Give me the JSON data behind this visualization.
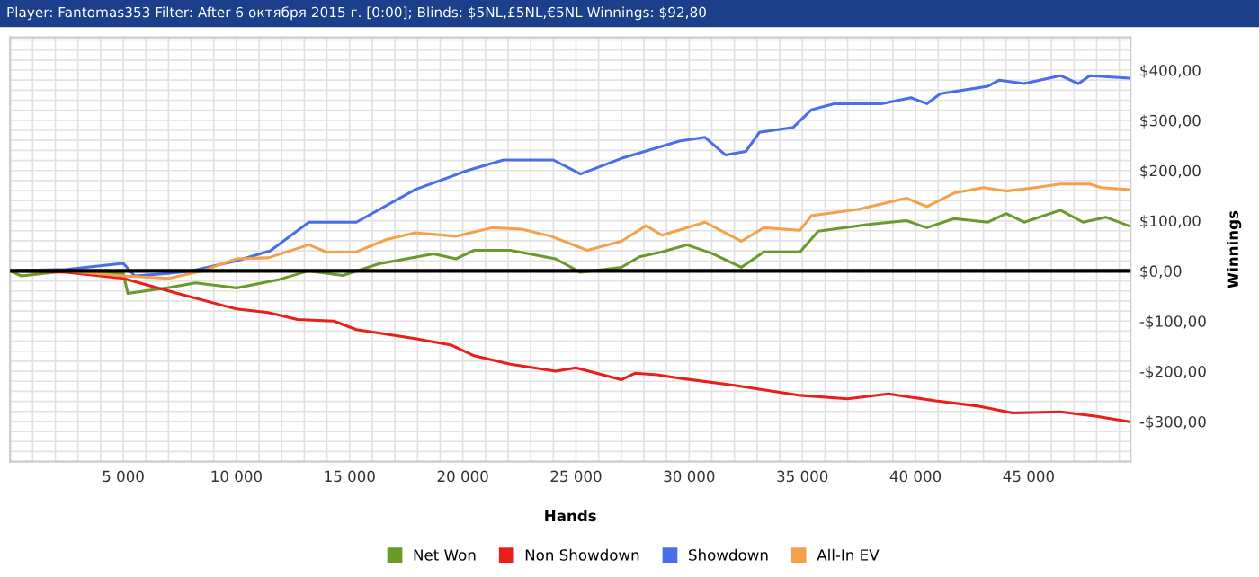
{
  "chart_data": {
    "type": "line",
    "title": "Player: Fantomas353 Filter: After 6 октября 2015 г. [0:00]; Blinds: $5NL,£5NL,€5NL Winnings: $92,80",
    "xlabel": "Hands",
    "ylabel": "Winnings",
    "xlim": [
      0,
      49500
    ],
    "ylim": [
      -380,
      465
    ],
    "xticks": [
      {
        "value": 5000,
        "label": "5 000"
      },
      {
        "value": 10000,
        "label": "10 000"
      },
      {
        "value": 15000,
        "label": "15 000"
      },
      {
        "value": 20000,
        "label": "20 000"
      },
      {
        "value": 25000,
        "label": "25 000"
      },
      {
        "value": 30000,
        "label": "30 000"
      },
      {
        "value": 35000,
        "label": "35 000"
      },
      {
        "value": 40000,
        "label": "40 000"
      },
      {
        "value": 45000,
        "label": "45 000"
      }
    ],
    "yticks": [
      {
        "value": -300,
        "label": "-$300,00"
      },
      {
        "value": -200,
        "label": "-$200,00"
      },
      {
        "value": -100,
        "label": "-$100,00"
      },
      {
        "value": 0,
        "label": "$0,00"
      },
      {
        "value": 100,
        "label": "$100,00"
      },
      {
        "value": 200,
        "label": "$200,00"
      },
      {
        "value": 300,
        "label": "$300,00"
      },
      {
        "value": 400,
        "label": "$400,00"
      }
    ],
    "grid": true,
    "legend": "bottom",
    "marker": "none",
    "line_style": "solid",
    "ref_lines": [
      {
        "axis": "y",
        "value": 0,
        "color": "#000000"
      }
    ],
    "series": [
      {
        "name": "Net Won",
        "color": "#6a9a2a",
        "x": [
          0,
          500,
          2500,
          5000,
          5200,
          6900,
          8200,
          10000,
          11900,
          13200,
          14700,
          16300,
          18700,
          19700,
          20500,
          22100,
          24100,
          25200,
          27000,
          27800,
          28800,
          29900,
          31000,
          32300,
          33300,
          34900,
          35700,
          38000,
          39600,
          40500,
          41700,
          43200,
          44000,
          44800,
          46400,
          47400,
          48400,
          49400
        ],
        "values": [
          0,
          -10,
          0,
          -5,
          -45,
          -34,
          -24,
          -34,
          -17,
          0,
          -9,
          14,
          34,
          24,
          41,
          41,
          24,
          -3,
          7,
          28,
          38,
          52,
          35,
          7,
          38,
          38,
          79,
          93,
          100,
          86,
          104,
          97,
          114,
          97,
          121,
          97,
          107,
          90
        ]
      },
      {
        "name": "Non Showdown",
        "color": "#e8201c",
        "x": [
          0,
          2500,
          5000,
          7400,
          10000,
          11400,
          12700,
          14300,
          15300,
          17900,
          19500,
          20500,
          22100,
          24100,
          25000,
          27000,
          27600,
          28600,
          29600,
          32000,
          34900,
          37000,
          38800,
          40900,
          42700,
          44300,
          46400,
          48000,
          49400
        ],
        "values": [
          0,
          -3,
          -15,
          -45,
          -76,
          -83,
          -97,
          -100,
          -117,
          -135,
          -148,
          -169,
          -186,
          -200,
          -193,
          -217,
          -204,
          -207,
          -214,
          -228,
          -248,
          -255,
          -245,
          -259,
          -269,
          -283,
          -281,
          -290,
          -300
        ]
      },
      {
        "name": "Showdown",
        "color": "#4a6ee8",
        "x": [
          0,
          2500,
          5000,
          5500,
          7000,
          8000,
          10000,
          11500,
          13200,
          15300,
          17900,
          20200,
          21800,
          24000,
          25200,
          27000,
          29600,
          30700,
          31600,
          32500,
          33100,
          34600,
          35400,
          36400,
          38500,
          39800,
          40500,
          41100,
          43200,
          43700,
          44800,
          46400,
          47200,
          47700,
          49400
        ],
        "values": [
          0,
          3,
          15,
          -10,
          -5,
          0,
          20,
          40,
          97,
          97,
          162,
          200,
          221,
          221,
          193,
          224,
          259,
          266,
          231,
          238,
          276,
          286,
          321,
          333,
          333,
          345,
          333,
          353,
          368,
          380,
          373,
          389,
          373,
          389,
          384
        ]
      },
      {
        "name": "All-In EV",
        "color": "#f5a04a",
        "x": [
          0,
          2500,
          5000,
          7000,
          8500,
          10000,
          11400,
          13200,
          14000,
          15300,
          16600,
          17900,
          19700,
          21300,
          22600,
          23900,
          25500,
          27000,
          28100,
          28800,
          30700,
          32300,
          33300,
          34900,
          35400,
          37500,
          39600,
          40500,
          41700,
          43000,
          44000,
          45300,
          46400,
          47700,
          48200,
          49400
        ],
        "values": [
          0,
          0,
          -10,
          -15,
          0,
          24,
          26,
          52,
          37,
          38,
          62,
          76,
          69,
          86,
          83,
          69,
          41,
          59,
          90,
          71,
          97,
          59,
          86,
          81,
          110,
          123,
          145,
          128,
          155,
          166,
          159,
          166,
          173,
          173,
          166,
          162
        ]
      }
    ]
  }
}
